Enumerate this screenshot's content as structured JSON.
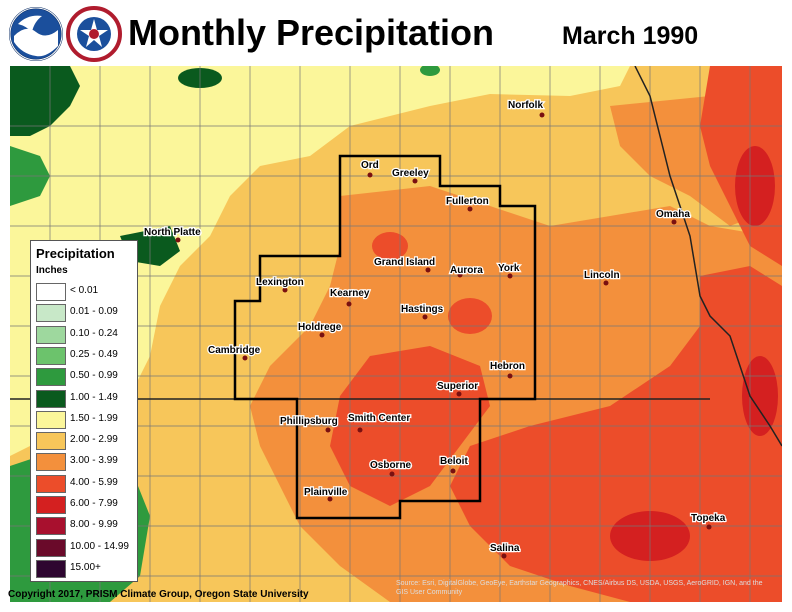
{
  "header": {
    "title": "Monthly Precipitation",
    "period": "March 1990"
  },
  "logos": [
    {
      "name": "noaa-logo",
      "label": "NOAA"
    },
    {
      "name": "nws-logo",
      "label": "NATIONAL WEATHER SERVICE"
    }
  ],
  "legend": {
    "title": "Precipitation",
    "units": "Inches",
    "bins": [
      {
        "label": "< 0.01",
        "color": "#ffffff"
      },
      {
        "label": "0.01 - 0.09",
        "color": "#c8e8c8"
      },
      {
        "label": "0.10 - 0.24",
        "color": "#9ed89e"
      },
      {
        "label": "0.25 - 0.49",
        "color": "#6cc36c"
      },
      {
        "label": "0.50 - 0.99",
        "color": "#2e9a3e"
      },
      {
        "label": "1.00 - 1.49",
        "color": "#0a5a1e"
      },
      {
        "label": "1.50 - 1.99",
        "color": "#fbf69a"
      },
      {
        "label": "2.00 - 2.99",
        "color": "#f7c65a"
      },
      {
        "label": "3.00 - 3.99",
        "color": "#f3903c"
      },
      {
        "label": "4.00 - 5.99",
        "color": "#ec4d2a"
      },
      {
        "label": "6.00 - 7.99",
        "color": "#d42020"
      },
      {
        "label": "8.00 - 9.99",
        "color": "#a8102e"
      },
      {
        "label": "10.00 - 14.99",
        "color": "#6a0a2a"
      },
      {
        "label": "15.00+",
        "color": "#2e0630"
      }
    ]
  },
  "cities": [
    {
      "name": "Norfolk"
    },
    {
      "name": "Ord"
    },
    {
      "name": "Greeley"
    },
    {
      "name": "Fullerton"
    },
    {
      "name": "North Platte"
    },
    {
      "name": "Omaha"
    },
    {
      "name": "Grand Island"
    },
    {
      "name": "Aurora"
    },
    {
      "name": "York"
    },
    {
      "name": "Lexington"
    },
    {
      "name": "Kearney"
    },
    {
      "name": "Lincoln"
    },
    {
      "name": "Hastings"
    },
    {
      "name": "Holdrege"
    },
    {
      "name": "Cambridge"
    },
    {
      "name": "Hebron"
    },
    {
      "name": "Superior"
    },
    {
      "name": "Phillipsburg"
    },
    {
      "name": "Smith Center"
    },
    {
      "name": "Osborne"
    },
    {
      "name": "Beloit"
    },
    {
      "name": "Plainville"
    },
    {
      "name": "Topeka"
    },
    {
      "name": "Salina"
    }
  ],
  "footer": {
    "copyright": "Copyright 2017, PRISM Climate Group, Oregon State University",
    "sources": "Source: Esri, DigitalGlobe, GeoEye, Earthstar Geographics, CNES/Airbus DS, USDA, USGS, AeroGRID, IGN, and the GIS User Community"
  }
}
